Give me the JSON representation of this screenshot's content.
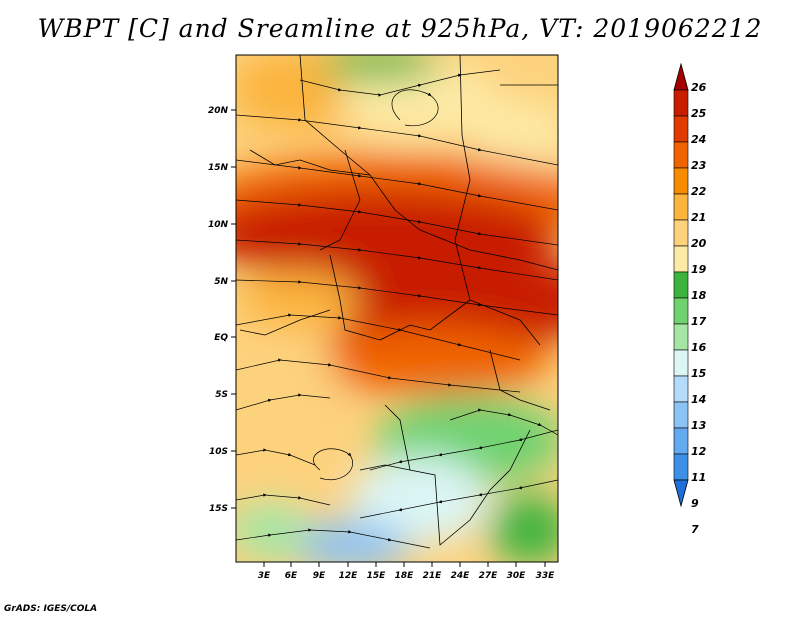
{
  "title": "WBPT [C] and Sreamline at 925hPa, VT: 2019062212",
  "credit": "GrADS: IGES/COLA",
  "map": {
    "lat_labels": [
      "20N",
      "15N",
      "10N",
      "5N",
      "EQ",
      "5S",
      "10S",
      "15S"
    ],
    "lon_labels": [
      "3E",
      "6E",
      "9E",
      "12E",
      "15E",
      "18E",
      "21E",
      "24E",
      "27E",
      "30E",
      "33E"
    ]
  },
  "colorbar": {
    "labels": [
      "26",
      "25",
      "24",
      "23",
      "22",
      "21",
      "20",
      "19",
      "18",
      "17",
      "16",
      "15",
      "14",
      "13",
      "12",
      "11",
      "9",
      "7"
    ],
    "colors": [
      "#a50000",
      "#c81e00",
      "#e03c00",
      "#f06400",
      "#f78c00",
      "#fbb43c",
      "#fdd27d",
      "#fdeaa5",
      "#3cb43c",
      "#6fd26f",
      "#a5e6a5",
      "#dcf5f5",
      "#b4dcfa",
      "#8cc3f5",
      "#64aaf0",
      "#3c91e6",
      "#1e6edc"
    ]
  }
}
